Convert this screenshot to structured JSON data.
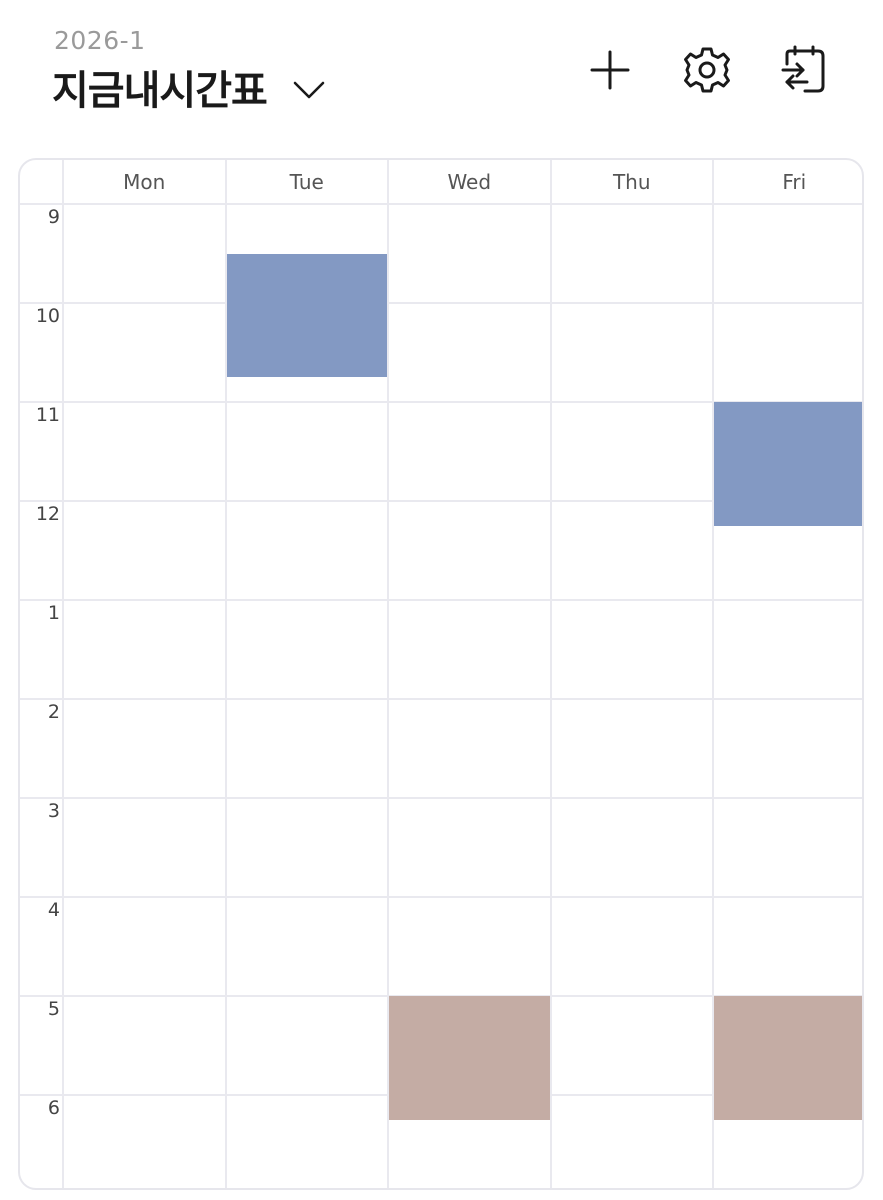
{
  "header": {
    "semester": "2026-1",
    "title": "지금내시간표",
    "icons": {
      "add": "plus-icon",
      "settings": "gear-icon",
      "share": "calendar-export-icon",
      "dropdown": "chevron-down-icon"
    }
  },
  "timetable": {
    "days": [
      "Mon",
      "Tue",
      "Wed",
      "Thu",
      "Fri"
    ],
    "hours": [
      "9",
      "10",
      "11",
      "12",
      "1",
      "2",
      "3",
      "4",
      "5",
      "6"
    ],
    "events": [
      {
        "day": "Tue",
        "start_hour": 9.5,
        "end_hour": 10.75,
        "color": "#8399c3"
      },
      {
        "day": "Fri",
        "start_hour": 11.0,
        "end_hour": 12.25,
        "color": "#8399c3"
      },
      {
        "day": "Wed",
        "start_hour": 17.0,
        "end_hour": 18.25,
        "color": "#c4aca4"
      },
      {
        "day": "Fri",
        "start_hour": 17.0,
        "end_hour": 18.25,
        "color": "#c4aca4"
      }
    ]
  },
  "colors": {
    "grid_line": "#e9e9ef",
    "border": "#e6e6ec",
    "semester_text": "#9a9a9a",
    "title_text": "#1a1a1a",
    "event_blue": "#8399c3",
    "event_rose": "#c4aca4"
  }
}
